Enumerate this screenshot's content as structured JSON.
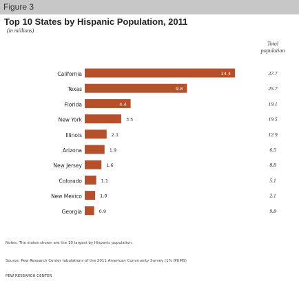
{
  "figure_label": "Figure 3",
  "title": "Top 10 States by Hispanic Population, 2011",
  "subtitle": "(in millions)",
  "total_header": [
    "Total",
    "population"
  ],
  "notes": "Notes: The states shown are the 10 largest by Hispanic population.",
  "source": "Source: Pew Research Center tabulations of the 2011 American Community Survey (1% IPUMS)",
  "credit": "PEW RESEARCH CENTER",
  "colors": {
    "bar": "#b5502a",
    "header_band": "#c7c7c7"
  },
  "chart_data": {
    "type": "bar",
    "orientation": "horizontal",
    "title": "Top 10 States by Hispanic Population, 2011",
    "subtitle": "(in millions)",
    "xlabel": "",
    "ylabel": "",
    "categories": [
      "California",
      "Texas",
      "Florida",
      "New York",
      "Illinois",
      "Arizona",
      "New Jersey",
      "Colorado",
      "New Mexico",
      "Georgia"
    ],
    "series": [
      {
        "values": [
          14.4,
          9.8,
          4.4,
          3.5,
          2.1,
          1.9,
          1.6,
          1.1,
          1.0,
          0.9
        ]
      }
    ],
    "total_population": {
      "name": "Total population",
      "values": [
        37.7,
        25.7,
        19.1,
        19.5,
        12.9,
        6.5,
        8.8,
        5.1,
        2.1,
        9.8
      ]
    },
    "xlim": [
      0,
      14.4
    ],
    "grid": false,
    "legend": "none"
  }
}
